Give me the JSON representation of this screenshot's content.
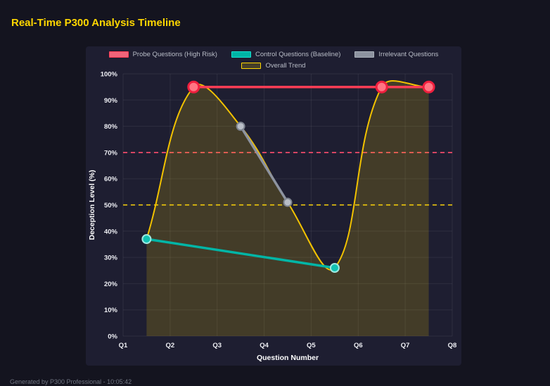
{
  "page": {
    "title": "Real-Time P300 Analysis Timeline",
    "footer": "Generated by P300 Professional - 10:05:42"
  },
  "chart_data": {
    "type": "line",
    "title": "Real-Time P300 Analysis Timeline",
    "xlabel": "Question Number",
    "ylabel": "Deception Level (%)",
    "x_ticks": [
      "Q1",
      "Q2",
      "Q3",
      "Q4",
      "Q5",
      "Q6",
      "Q7",
      "Q8"
    ],
    "x_range": [
      1,
      8
    ],
    "ylim": [
      0,
      100
    ],
    "y_tick_step": 10,
    "y_tick_suffix": "%",
    "grid": true,
    "legend_position": "top",
    "legend": [
      {
        "label": "Probe Questions (High Risk)",
        "box_fill": "#f0647a",
        "box_border": "#ff3b54",
        "row": 1
      },
      {
        "label": "Control Questions (Baseline)",
        "box_fill": "#00b5a6",
        "box_border": "#17e0cf",
        "row": 1
      },
      {
        "label": "Irrelevant Questions",
        "box_fill": "#8d93a0",
        "box_border": "#aab0ba",
        "row": 1
      },
      {
        "label": "Overall Trend",
        "box_fill": "rgba(255,215,0,0.18)",
        "box_border": "#ffd700",
        "row": 2
      }
    ],
    "series": [
      {
        "name": "Overall Trend",
        "color": "#f2c200",
        "width": 2,
        "smooth": true,
        "tension": 0.38,
        "fill": "rgba(255,215,0,0.17)",
        "point_radius": 0,
        "points": [
          [
            1.5,
            37
          ],
          [
            2.5,
            95
          ],
          [
            3.5,
            80
          ],
          [
            4.5,
            51
          ],
          [
            5.5,
            26
          ],
          [
            6.5,
            95
          ],
          [
            7.5,
            95
          ]
        ]
      },
      {
        "name": "Irrelevant Questions",
        "color": "#8d93a0",
        "width": 3.5,
        "point_radius": 5.5,
        "point_fill": "#b9bec7",
        "point_border": "#7e8490",
        "point_border_width": 2,
        "points": [
          [
            3.5,
            80
          ],
          [
            4.5,
            51
          ]
        ]
      },
      {
        "name": "Control Questions (Baseline)",
        "color": "#00b5a6",
        "width": 3.5,
        "point_radius": 6,
        "point_fill": "#12c1b2",
        "point_border": "#9fe9e2",
        "point_border_width": 2,
        "points": [
          [
            1.5,
            37
          ],
          [
            5.5,
            26
          ]
        ]
      },
      {
        "name": "Probe Questions (High Risk)",
        "color": "#ff3d55",
        "width": 3.5,
        "point_radius": 7.5,
        "point_fill": "#ff7583",
        "point_border": "#f01f3e",
        "point_border_width": 3,
        "points": [
          [
            2.5,
            95
          ],
          [
            6.5,
            95
          ],
          [
            7.5,
            95
          ]
        ]
      }
    ],
    "thresholds": [
      {
        "value": 70,
        "color": "#ff4d6d",
        "dash": [
          6,
          5
        ]
      },
      {
        "value": 50,
        "color": "#ffd60a",
        "dash": [
          6,
          5
        ]
      }
    ]
  }
}
